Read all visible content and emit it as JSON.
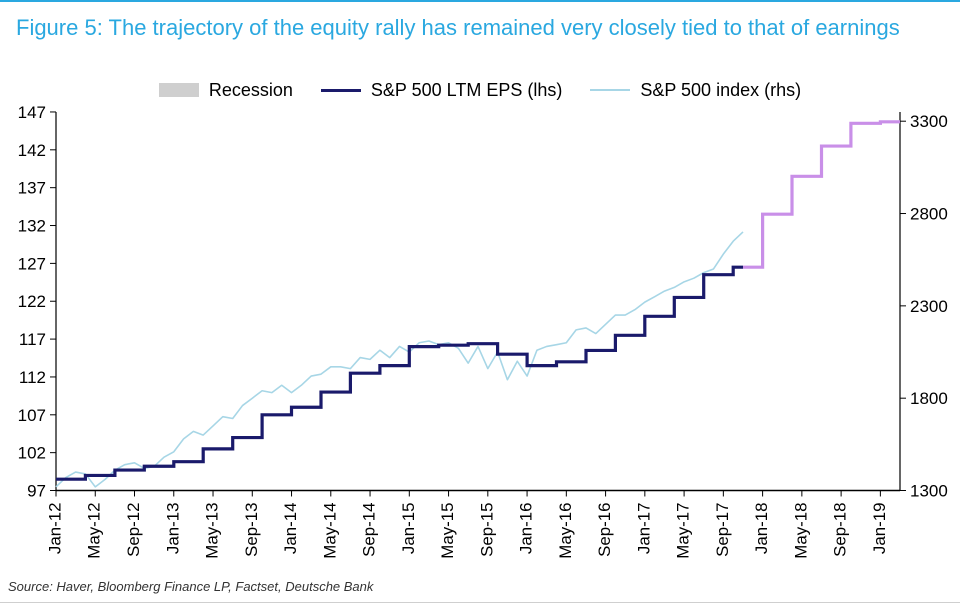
{
  "title": "Figure 5: The trajectory of the equity rally has remained very closely tied to that of earnings",
  "source": "Source: Haver, Bloomberg Finance LP, Factset, Deutsche Bank",
  "legend": {
    "recession": "Recession",
    "eps": "S&P 500 LTM EPS (lhs)",
    "index": "S&P 500 index (rhs)"
  },
  "colors": {
    "border_top": "#2aa8e0",
    "title": "#2aa8e0",
    "recession_fill": "#cfcfcf",
    "eps_line": "#1a1a6b",
    "eps_line_forecast": "#c98fe8",
    "index_line": "#a7d6e6",
    "axis": "#000000",
    "tick_text": "#000000",
    "background": "#ffffff"
  },
  "chart": {
    "type": "line-dual-axis",
    "x": {
      "type": "time",
      "min": "2012-01",
      "max": "2019-03",
      "tick_labels": [
        "Jan-12",
        "May-12",
        "Sep-12",
        "Jan-13",
        "May-13",
        "Sep-13",
        "Jan-14",
        "May-14",
        "Sep-14",
        "Jan-15",
        "May-15",
        "Sep-15",
        "Jan-16",
        "May-16",
        "Sep-16",
        "Jan-17",
        "May-17",
        "Sep-17",
        "Jan-18",
        "May-18",
        "Sep-18",
        "Jan-19"
      ],
      "tick_months": [
        0,
        4,
        8,
        12,
        16,
        20,
        24,
        28,
        32,
        36,
        40,
        44,
        48,
        52,
        56,
        60,
        64,
        68,
        72,
        76,
        80,
        84
      ],
      "label_fontsize": 17,
      "label_rotation_deg": -90
    },
    "y_left": {
      "label": "",
      "min": 97,
      "max": 147,
      "ticks": [
        97,
        102,
        107,
        112,
        117,
        122,
        127,
        132,
        137,
        142,
        147
      ],
      "fontsize": 17
    },
    "y_right": {
      "label": "",
      "min": 1300,
      "max": 3350,
      "ticks": [
        1300,
        1800,
        2300,
        2800,
        3300
      ],
      "fontsize": 17
    },
    "line_width_eps": 3.2,
    "line_width_index": 1.6,
    "plot_background": "#ffffff",
    "series": {
      "eps": {
        "axis": "left",
        "render": "step",
        "color": "#1a1a6b",
        "data": [
          [
            0,
            98.5
          ],
          [
            3,
            98.5
          ],
          [
            3,
            99.0
          ],
          [
            6,
            99.0
          ],
          [
            6,
            99.7
          ],
          [
            9,
            99.7
          ],
          [
            9,
            100.2
          ],
          [
            12,
            100.2
          ],
          [
            12,
            100.8
          ],
          [
            15,
            100.8
          ],
          [
            15,
            102.5
          ],
          [
            18,
            102.5
          ],
          [
            18,
            104.0
          ],
          [
            21,
            104.0
          ],
          [
            21,
            107.0
          ],
          [
            24,
            107.0
          ],
          [
            24,
            108.0
          ],
          [
            27,
            108.0
          ],
          [
            27,
            110.0
          ],
          [
            30,
            110.0
          ],
          [
            30,
            112.5
          ],
          [
            33,
            112.5
          ],
          [
            33,
            113.5
          ],
          [
            36,
            113.5
          ],
          [
            36,
            116.0
          ],
          [
            39,
            116.0
          ],
          [
            39,
            116.2
          ],
          [
            42,
            116.2
          ],
          [
            42,
            116.4
          ],
          [
            45,
            116.4
          ],
          [
            45,
            115.0
          ],
          [
            48,
            115.0
          ],
          [
            48,
            113.5
          ],
          [
            51,
            113.5
          ],
          [
            51,
            114.0
          ],
          [
            54,
            114.0
          ],
          [
            54,
            115.5
          ],
          [
            57,
            115.5
          ],
          [
            57,
            117.5
          ],
          [
            60,
            117.5
          ],
          [
            60,
            120.0
          ],
          [
            63,
            120.0
          ],
          [
            63,
            122.5
          ],
          [
            66,
            122.5
          ],
          [
            66,
            125.5
          ],
          [
            69,
            125.5
          ],
          [
            69,
            126.5
          ],
          [
            70,
            126.5
          ]
        ]
      },
      "eps_forecast": {
        "axis": "left",
        "render": "step",
        "color": "#c98fe8",
        "data": [
          [
            70,
            126.5
          ],
          [
            72,
            126.5
          ],
          [
            72,
            133.5
          ],
          [
            75,
            133.5
          ],
          [
            75,
            138.5
          ],
          [
            78,
            138.5
          ],
          [
            78,
            142.5
          ],
          [
            81,
            142.5
          ],
          [
            81,
            145.5
          ],
          [
            84,
            145.5
          ],
          [
            84,
            145.7
          ],
          [
            86,
            145.7
          ]
        ]
      },
      "index": {
        "axis": "right",
        "render": "line",
        "color": "#a7d6e6",
        "data": [
          [
            0,
            1320
          ],
          [
            1,
            1370
          ],
          [
            2,
            1400
          ],
          [
            3,
            1390
          ],
          [
            4,
            1320
          ],
          [
            5,
            1360
          ],
          [
            6,
            1410
          ],
          [
            7,
            1440
          ],
          [
            8,
            1450
          ],
          [
            9,
            1420
          ],
          [
            10,
            1430
          ],
          [
            11,
            1480
          ],
          [
            12,
            1510
          ],
          [
            13,
            1580
          ],
          [
            14,
            1620
          ],
          [
            15,
            1600
          ],
          [
            16,
            1650
          ],
          [
            17,
            1700
          ],
          [
            18,
            1690
          ],
          [
            19,
            1760
          ],
          [
            20,
            1800
          ],
          [
            21,
            1840
          ],
          [
            22,
            1830
          ],
          [
            23,
            1870
          ],
          [
            24,
            1830
          ],
          [
            25,
            1870
          ],
          [
            26,
            1920
          ],
          [
            27,
            1930
          ],
          [
            28,
            1970
          ],
          [
            29,
            1970
          ],
          [
            30,
            1960
          ],
          [
            31,
            2020
          ],
          [
            32,
            2010
          ],
          [
            33,
            2060
          ],
          [
            34,
            2020
          ],
          [
            35,
            2080
          ],
          [
            36,
            2050
          ],
          [
            37,
            2100
          ],
          [
            38,
            2110
          ],
          [
            39,
            2090
          ],
          [
            40,
            2100
          ],
          [
            41,
            2070
          ],
          [
            42,
            1990
          ],
          [
            43,
            2080
          ],
          [
            44,
            1960
          ],
          [
            45,
            2050
          ],
          [
            46,
            1900
          ],
          [
            47,
            2000
          ],
          [
            48,
            1920
          ],
          [
            49,
            2060
          ],
          [
            50,
            2080
          ],
          [
            51,
            2090
          ],
          [
            52,
            2100
          ],
          [
            53,
            2170
          ],
          [
            54,
            2180
          ],
          [
            55,
            2150
          ],
          [
            56,
            2200
          ],
          [
            57,
            2250
          ],
          [
            58,
            2250
          ],
          [
            59,
            2280
          ],
          [
            60,
            2320
          ],
          [
            61,
            2350
          ],
          [
            62,
            2380
          ],
          [
            63,
            2400
          ],
          [
            64,
            2430
          ],
          [
            65,
            2450
          ],
          [
            66,
            2480
          ],
          [
            67,
            2500
          ],
          [
            68,
            2580
          ],
          [
            69,
            2650
          ],
          [
            70,
            2700
          ]
        ]
      }
    }
  }
}
